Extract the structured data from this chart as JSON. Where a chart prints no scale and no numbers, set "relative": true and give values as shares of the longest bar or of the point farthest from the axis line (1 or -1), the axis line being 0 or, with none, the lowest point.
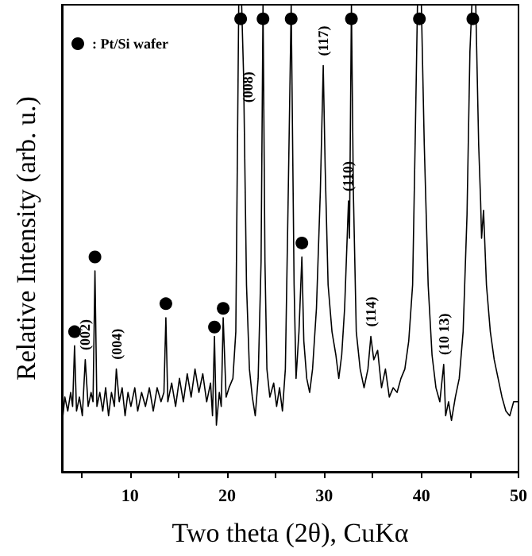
{
  "chart_data": {
    "type": "line",
    "relative": true,
    "xlabel": "Two theta (2θ), CuKα",
    "ylabel": "Relative Intensity (arb. u.)",
    "xlim": [
      3,
      50
    ],
    "xticks": [
      {
        "value": 5,
        "label": null
      },
      10,
      {
        "value": 15,
        "label": null
      },
      20,
      {
        "value": 25,
        "label": null
      },
      30,
      {
        "value": 35,
        "label": null
      },
      40,
      {
        "value": 45,
        "label": null
      },
      50
    ],
    "tick_labels": "x",
    "grid": false,
    "legend": "top left",
    "series": [
      {
        "type": "line",
        "color": "#000000",
        "marker": "none",
        "line_style": "solid",
        "x": [
          3.0,
          3.3,
          3.6,
          3.9,
          4.1,
          4.3,
          4.5,
          4.8,
          5.1,
          5.4,
          5.7,
          6.0,
          6.2,
          6.4,
          6.6,
          6.9,
          7.2,
          7.5,
          7.8,
          8.1,
          8.4,
          8.6,
          8.9,
          9.2,
          9.5,
          9.8,
          10.1,
          10.5,
          10.8,
          11.2,
          11.6,
          12.0,
          12.4,
          12.8,
          13.2,
          13.5,
          13.7,
          13.9,
          14.3,
          14.7,
          15.1,
          15.5,
          15.9,
          16.3,
          16.7,
          17.1,
          17.5,
          17.9,
          18.3,
          18.5,
          18.7,
          18.9,
          19.2,
          19.4,
          19.6,
          19.9,
          20.2,
          20.6,
          20.9,
          21.2,
          21.5,
          21.7,
          22.0,
          22.3,
          22.6,
          22.9,
          23.2,
          23.5,
          23.7,
          23.9,
          24.1,
          24.4,
          24.8,
          25.1,
          25.4,
          25.7,
          26.0,
          26.3,
          26.6,
          26.9,
          27.1,
          27.4,
          27.7,
          27.9,
          28.2,
          28.5,
          28.8,
          29.2,
          29.6,
          29.9,
          30.1,
          30.4,
          30.8,
          31.2,
          31.5,
          31.8,
          32.1,
          32.5,
          32.6,
          32.8,
          33.0,
          33.3,
          33.7,
          34.1,
          34.5,
          34.8,
          35.1,
          35.5,
          35.9,
          36.3,
          36.7,
          37.1,
          37.5,
          37.9,
          38.3,
          38.7,
          39.1,
          39.4,
          39.6,
          40.0,
          40.3,
          40.7,
          41.1,
          41.5,
          41.9,
          42.3,
          42.5,
          42.8,
          43.1,
          43.5,
          43.9,
          44.3,
          44.7,
          45.0,
          45.2,
          45.6,
          45.9,
          46.1,
          46.2,
          46.4,
          46.7,
          47.1,
          47.5,
          47.9,
          48.3,
          48.7,
          49.1,
          49.5,
          50.0
        ],
        "values": [
          0.1,
          0.16,
          0.13,
          0.17,
          0.14,
          0.27,
          0.13,
          0.16,
          0.12,
          0.24,
          0.14,
          0.17,
          0.15,
          0.43,
          0.14,
          0.17,
          0.13,
          0.18,
          0.12,
          0.17,
          0.14,
          0.22,
          0.15,
          0.18,
          0.12,
          0.17,
          0.14,
          0.18,
          0.13,
          0.17,
          0.14,
          0.18,
          0.13,
          0.18,
          0.15,
          0.17,
          0.33,
          0.15,
          0.19,
          0.14,
          0.2,
          0.15,
          0.21,
          0.16,
          0.22,
          0.17,
          0.21,
          0.15,
          0.19,
          0.12,
          0.29,
          0.1,
          0.17,
          0.14,
          0.33,
          0.16,
          0.18,
          0.2,
          0.3,
          1,
          1,
          0.85,
          0.4,
          0.22,
          0.16,
          0.12,
          0.2,
          0.45,
          1,
          0.45,
          0.22,
          0.16,
          0.19,
          0.14,
          0.18,
          0.13,
          0.22,
          0.6,
          1,
          0.4,
          0.2,
          0.3,
          0.46,
          0.28,
          0.2,
          0.17,
          0.22,
          0.35,
          0.6,
          0.87,
          0.65,
          0.4,
          0.3,
          0.25,
          0.2,
          0.25,
          0.35,
          0.58,
          0.5,
          1,
          0.6,
          0.3,
          0.22,
          0.18,
          0.22,
          0.29,
          0.24,
          0.26,
          0.18,
          0.22,
          0.16,
          0.18,
          0.17,
          0.2,
          0.22,
          0.28,
          0.4,
          0.75,
          1,
          1,
          0.7,
          0.4,
          0.25,
          0.18,
          0.15,
          0.23,
          0.12,
          0.15,
          0.11,
          0.16,
          0.2,
          0.3,
          0.55,
          0.9,
          1,
          1,
          0.7,
          0.58,
          0.5,
          0.56,
          0.4,
          0.3,
          0.24,
          0.2,
          0.16,
          0.13,
          0.12,
          0.15,
          0.15
        ]
      },
      {
        "type": "scatter",
        "name": ": Pt/Si wafer",
        "color": "#000000",
        "marker": "circle",
        "x": [
          4.3,
          6.4,
          13.7,
          18.7,
          19.6,
          21.4,
          23.7,
          26.6,
          27.7,
          32.8,
          39.8,
          45.3
        ],
        "values": [
          0.3,
          0.46,
          0.36,
          0.31,
          0.35,
          0.97,
          0.97,
          0.97,
          0.49,
          0.97,
          0.97,
          0.97
        ]
      }
    ],
    "annotations": [
      {
        "text": "(002)",
        "x": 5.4,
        "y": 0.25
      },
      {
        "text": "(004)",
        "x": 8.6,
        "y": 0.23
      },
      {
        "text": "(008)",
        "x": 22.1,
        "y": 0.78
      },
      {
        "text": "(117)",
        "x": 29.9,
        "y": 0.88
      },
      {
        "text": "(110)",
        "x": 32.4,
        "y": 0.59
      },
      {
        "text": "(114)",
        "x": 34.8,
        "y": 0.3
      },
      {
        "text": "(10 13)",
        "x": 42.3,
        "y": 0.24
      }
    ]
  }
}
